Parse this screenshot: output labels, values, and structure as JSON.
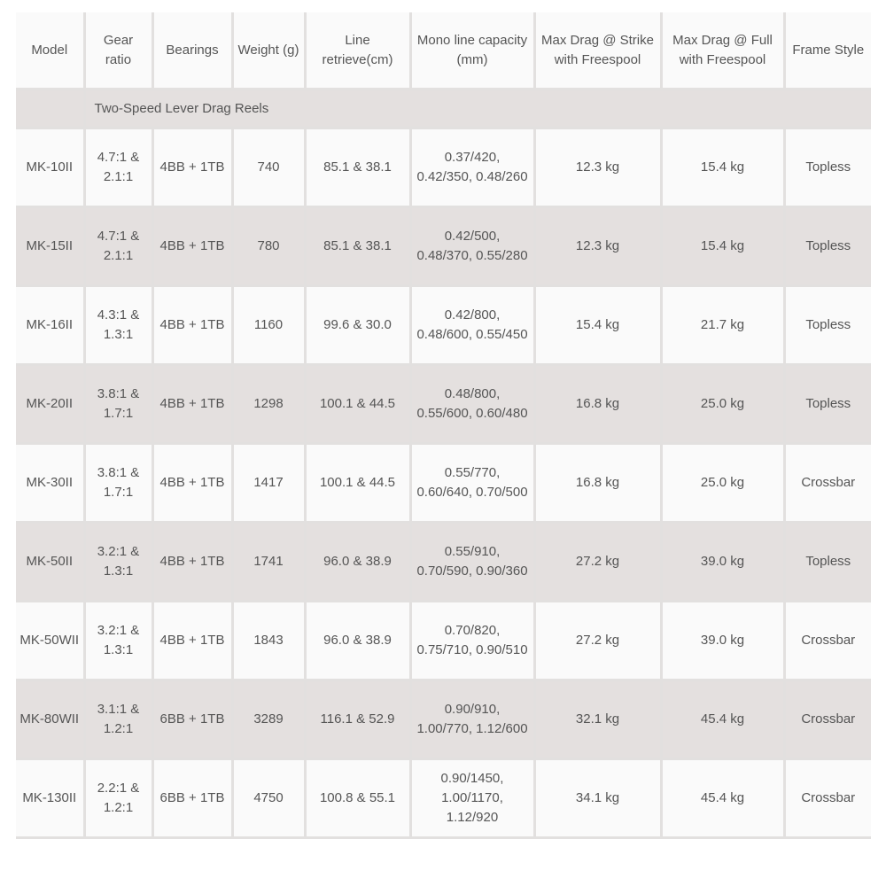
{
  "headers": [
    "Model",
    "Gear ratio",
    "Bearings",
    "Weight (g)",
    "Line retrieve(cm)",
    "Mono line capacity (mm)",
    "Max Drag @ Strike with Freespool",
    "Max Drag @ Full with Freespool",
    "Frame Style"
  ],
  "section": "Two-Speed Lever Drag Reels",
  "colors": {
    "stripe": "#e4e0df",
    "background": "#fafafa",
    "text": "#555555"
  },
  "rows": [
    [
      "MK-10II",
      "4.7:1 & 2.1:1",
      "4BB + 1TB",
      "740",
      "85.1 & 38.1",
      "0.37/420, 0.42/350, 0.48/260",
      "12.3 kg",
      "15.4 kg",
      "Topless"
    ],
    [
      "MK-15II",
      "4.7:1 & 2.1:1",
      "4BB + 1TB",
      "780",
      "85.1 & 38.1",
      "0.42/500, 0.48/370, 0.55/280",
      "12.3 kg",
      "15.4 kg",
      "Topless"
    ],
    [
      "MK-16II",
      "4.3:1 & 1.3:1",
      "4BB + 1TB",
      "1160",
      "99.6 & 30.0",
      "0.42/800, 0.48/600, 0.55/450",
      "15.4 kg",
      "21.7 kg",
      "Topless"
    ],
    [
      "MK-20II",
      "3.8:1 & 1.7:1",
      "4BB + 1TB",
      "1298",
      "100.1 & 44.5",
      "0.48/800, 0.55/600, 0.60/480",
      "16.8 kg",
      "25.0 kg",
      "Topless"
    ],
    [
      "MK-30II",
      "3.8:1 & 1.7:1",
      "4BB + 1TB",
      "1417",
      "100.1 & 44.5",
      "0.55/770, 0.60/640, 0.70/500",
      "16.8 kg",
      "25.0 kg",
      "Crossbar"
    ],
    [
      "MK-50II",
      "3.2:1 & 1.3:1",
      "4BB + 1TB",
      "1741",
      "96.0 & 38.9",
      "0.55/910, 0.70/590, 0.90/360",
      "27.2 kg",
      "39.0 kg",
      "Topless"
    ],
    [
      "MK-50WII",
      "3.2:1 & 1.3:1",
      "4BB + 1TB",
      "1843",
      "96.0 & 38.9",
      "0.70/820, 0.75/710, 0.90/510",
      "27.2 kg",
      "39.0 kg",
      "Crossbar"
    ],
    [
      "MK-80WII",
      "3.1:1 & 1.2:1",
      "6BB + 1TB",
      "3289",
      "116.1 & 52.9",
      "0.90/910, 1.00/770, 1.12/600",
      "32.1 kg",
      "45.4 kg",
      "Crossbar"
    ],
    [
      "MK-130II",
      "2.2:1 & 1.2:1",
      "6BB + 1TB",
      "4750",
      "100.8 & 55.1",
      "0.90/1450, 1.00/1170, 1.12/920",
      "34.1 kg",
      "45.4 kg",
      "Crossbar"
    ]
  ]
}
